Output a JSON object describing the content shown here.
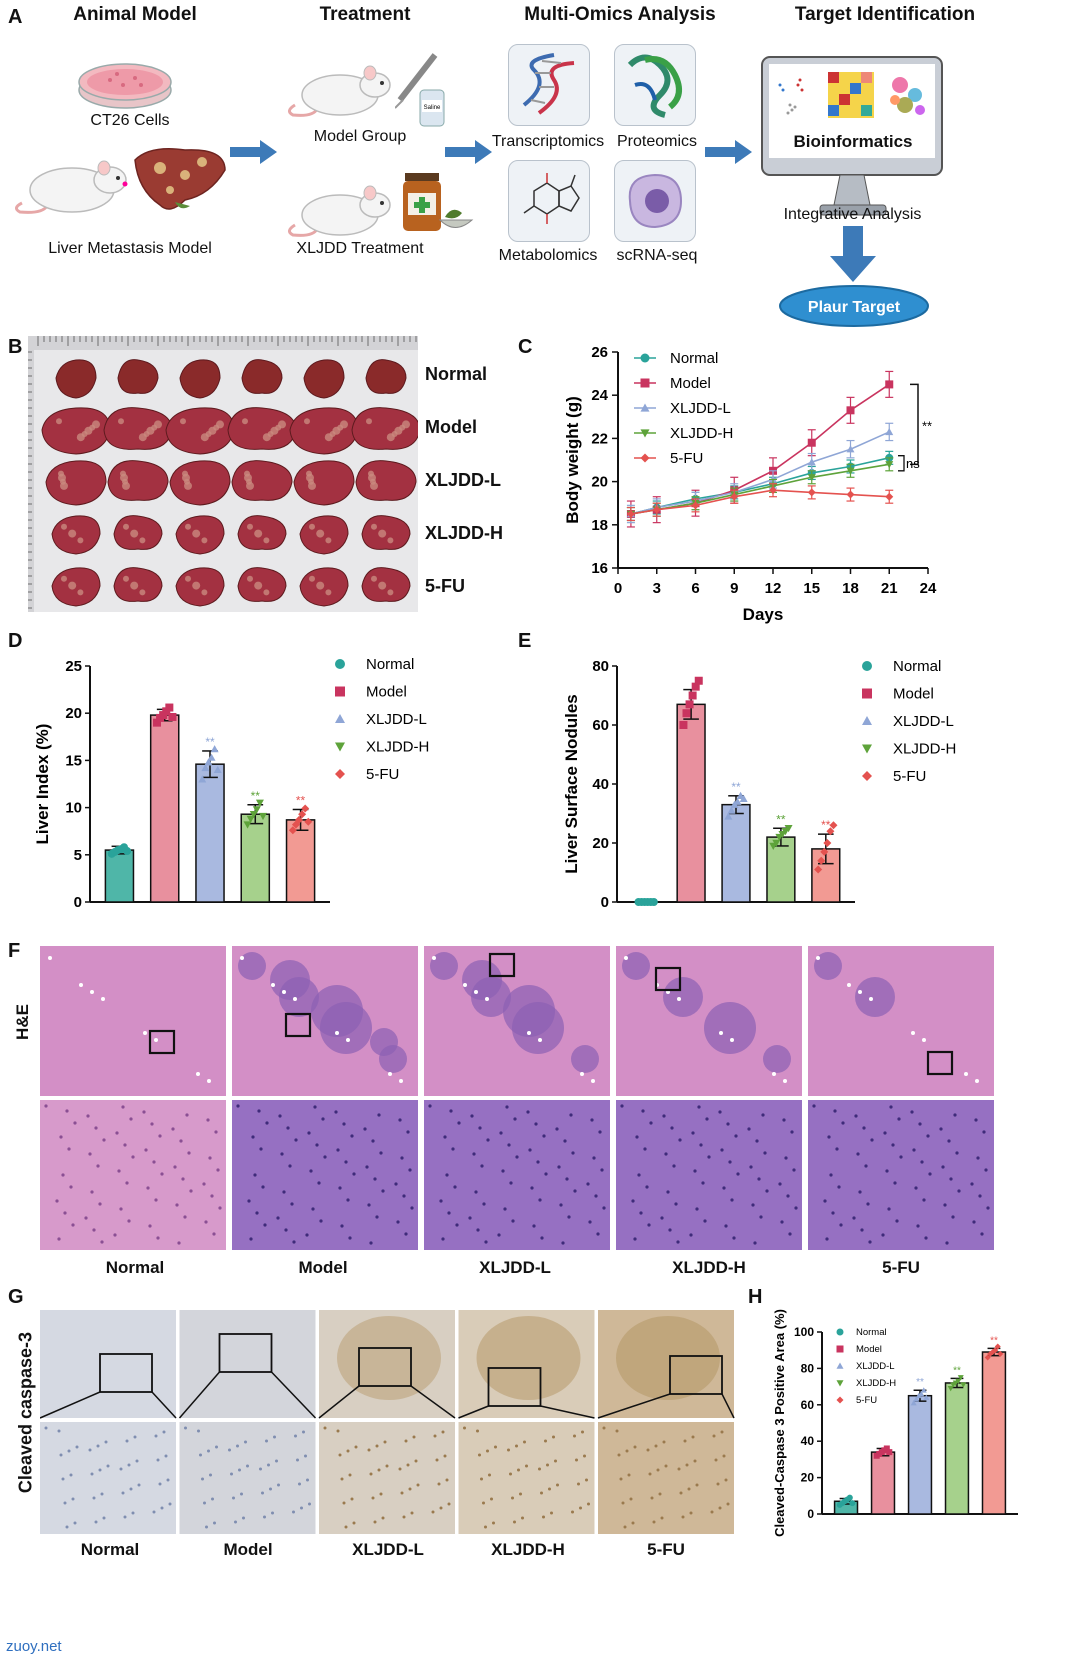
{
  "panel_letters": {
    "a": "A",
    "b": "B",
    "c": "C",
    "d": "D",
    "e": "E",
    "f": "F",
    "g": "G",
    "h": "H"
  },
  "panel_a": {
    "headings": [
      "Animal Model",
      "Treatment",
      "Multi-Omics Analysis",
      "Target Identification"
    ],
    "ct26": "CT26 Cells",
    "liver_model": "Liver Metastasis Model",
    "model_group": "Model Group",
    "xljdd_treatment": "XLJDD Treatment",
    "saline": "Saline",
    "omics": [
      "Transcriptomics",
      "Proteomics",
      "Metabolomics",
      "scRNA-seq"
    ],
    "bioinformatics": "Bioinformatics",
    "integrative": "Integrative Analysis",
    "target": "Plaur Target"
  },
  "panel_b": {
    "rows": [
      "Normal",
      "Model",
      "XLJDD-L",
      "XLJDD-H",
      "5-FU"
    ]
  },
  "panel_f": {
    "row_label": "H&E",
    "columns": [
      "Normal",
      "Model",
      "XLJDD-L",
      "XLJDD-H",
      "5-FU"
    ]
  },
  "panel_g": {
    "row_label": "Cleaved caspase-3",
    "columns": [
      "Normal",
      "Model",
      "XLJDD-L",
      "XLJDD-H",
      "5-FU"
    ]
  },
  "colors": {
    "normal": "#2aa39a",
    "model": "#c9345f",
    "xljdd_l": "#8fa6d6",
    "xljdd_h": "#5ea33a",
    "fu": "#e4524f",
    "bar_normal": "#4fb6a8",
    "bar_model": "#e8909e",
    "bar_l": "#a9b9e0",
    "bar_h": "#a6d18c",
    "bar_fu": "#f29a93",
    "arrow": "#3d7ab8",
    "target": "#2f8fd0",
    "he": "#c87bbf",
    "ihc": "#d9dde3"
  },
  "footer": "zuoy.net",
  "chart_data": [
    {
      "id": "C",
      "type": "line",
      "xlabel": "Days",
      "ylabel": "Body weight (g)",
      "xlim": [
        0,
        24
      ],
      "ylim": [
        16,
        26
      ],
      "xticks": [
        0,
        3,
        6,
        9,
        12,
        15,
        18,
        21,
        24
      ],
      "yticks": [
        16,
        18,
        20,
        22,
        24,
        26
      ],
      "x": [
        1,
        3,
        6,
        9,
        12,
        15,
        18,
        21
      ],
      "series": [
        {
          "name": "Normal",
          "marker": "circle",
          "values": [
            18.5,
            18.8,
            19.2,
            19.5,
            19.9,
            20.4,
            20.7,
            21.1
          ],
          "err": 0.3
        },
        {
          "name": "Model",
          "marker": "square",
          "values": [
            18.5,
            18.7,
            19.0,
            19.6,
            20.5,
            21.8,
            23.3,
            24.5
          ],
          "err": 0.6
        },
        {
          "name": "XLJDD-L",
          "marker": "triangle-up",
          "values": [
            18.5,
            18.8,
            19.1,
            19.5,
            20.1,
            20.9,
            21.5,
            22.3
          ],
          "err": 0.4
        },
        {
          "name": "XLJDD-H",
          "marker": "triangle-down",
          "values": [
            18.5,
            18.7,
            19.0,
            19.4,
            19.8,
            20.2,
            20.5,
            20.8
          ],
          "err": 0.3
        },
        {
          "name": "5-FU",
          "marker": "diamond",
          "values": [
            18.5,
            18.7,
            18.9,
            19.3,
            19.6,
            19.5,
            19.4,
            19.3
          ],
          "err": 0.3
        }
      ],
      "annotations": [
        "**",
        "ns"
      ],
      "legend": "top-left"
    },
    {
      "id": "D",
      "type": "bar",
      "ylabel": "Liver Index (%)",
      "ylim": [
        0,
        25
      ],
      "yticks": [
        0,
        5,
        10,
        15,
        20,
        25
      ],
      "categories": [
        "Normal",
        "Model",
        "XLJDD-L",
        "XLJDD-H",
        "5-FU"
      ],
      "values": [
        5.5,
        19.8,
        14.6,
        9.3,
        8.7
      ],
      "errors": [
        0.4,
        0.6,
        1.4,
        1.0,
        1.1
      ],
      "points": [
        [
          5.1,
          5.3,
          5.5,
          5.6,
          5.8,
          5.4
        ],
        [
          19.0,
          19.5,
          19.8,
          20.2,
          20.6,
          19.6
        ],
        [
          13.0,
          14.2,
          14.8,
          15.3,
          16.2,
          14.0
        ],
        [
          8.2,
          8.8,
          9.3,
          9.8,
          10.5,
          9.1
        ],
        [
          7.6,
          8.2,
          8.7,
          9.3,
          9.9,
          8.5
        ]
      ],
      "stars": [
        "",
        "",
        "**",
        "**",
        "**"
      ],
      "legend": "right"
    },
    {
      "id": "E",
      "type": "bar",
      "ylabel": "Liver Surface Nodules",
      "ylim": [
        0,
        80
      ],
      "yticks": [
        0,
        20,
        40,
        60,
        80
      ],
      "categories": [
        "Normal",
        "Model",
        "XLJDD-L",
        "XLJDD-H",
        "5-FU"
      ],
      "values": [
        0,
        67,
        33,
        22,
        18
      ],
      "errors": [
        0,
        5,
        3,
        3,
        5
      ],
      "points": [
        [
          0,
          0,
          0,
          0,
          0,
          0
        ],
        [
          60,
          64,
          67,
          70,
          73,
          75
        ],
        [
          29,
          31,
          33,
          34,
          36,
          35
        ],
        [
          19,
          20,
          22,
          23,
          24,
          25
        ],
        [
          11,
          14,
          17,
          20,
          24,
          26
        ]
      ],
      "stars": [
        "",
        "",
        "**",
        "**",
        "**"
      ],
      "legend": "right"
    },
    {
      "id": "H",
      "type": "bar",
      "ylabel": "Cleaved-Caspase 3 Positive Area (%)",
      "ylim": [
        0,
        100
      ],
      "yticks": [
        0,
        20,
        40,
        60,
        80,
        100
      ],
      "categories": [
        "Normal",
        "Model",
        "XLJDD-L",
        "XLJDD-H",
        "5-FU"
      ],
      "values": [
        7,
        34,
        65,
        72,
        89
      ],
      "errors": [
        1.5,
        2,
        3,
        2.5,
        2
      ],
      "points": [
        [
          5,
          6,
          7,
          8,
          9,
          6
        ],
        [
          32,
          33,
          34,
          35,
          36,
          34
        ],
        [
          61,
          63,
          65,
          66,
          68,
          64
        ],
        [
          69,
          71,
          72,
          73,
          75,
          71
        ],
        [
          86,
          88,
          89,
          90,
          92,
          88
        ]
      ],
      "stars": [
        "",
        "",
        "**",
        "**",
        "**"
      ],
      "legend": "top-left"
    }
  ]
}
